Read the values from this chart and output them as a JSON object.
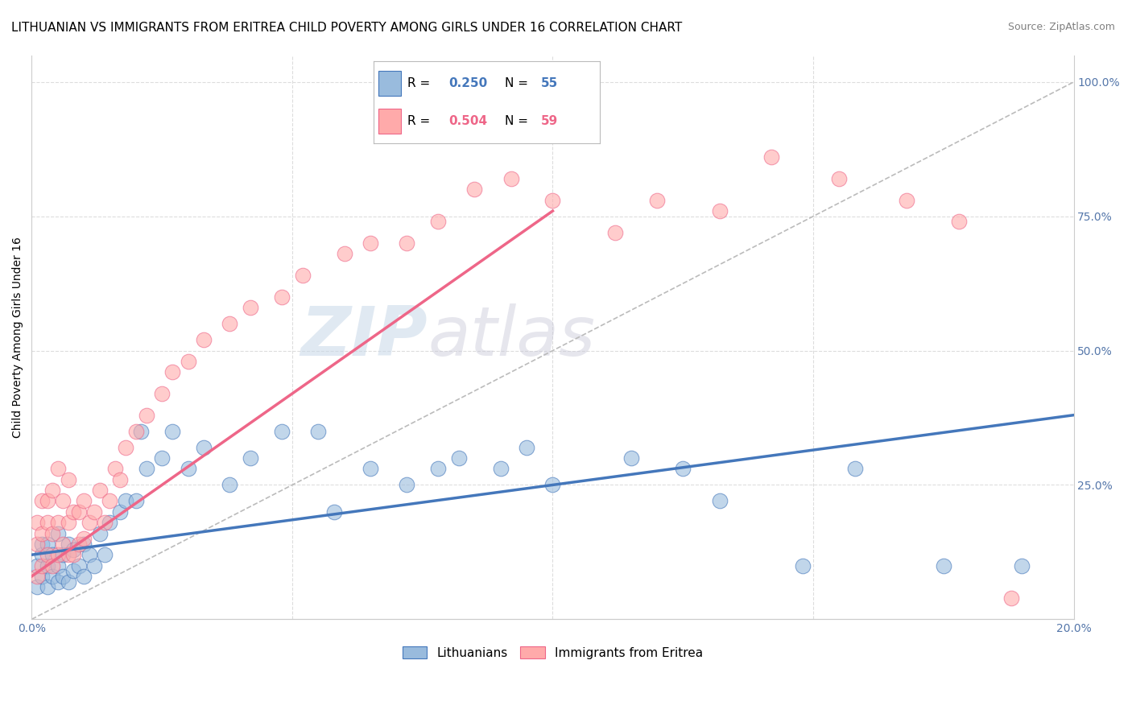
{
  "title": "LITHUANIAN VS IMMIGRANTS FROM ERITREA CHILD POVERTY AMONG GIRLS UNDER 16 CORRELATION CHART",
  "source": "Source: ZipAtlas.com",
  "ylabel": "Child Poverty Among Girls Under 16",
  "xlim": [
    0.0,
    0.2
  ],
  "ylim": [
    0.0,
    1.05
  ],
  "color_blue": "#99BBDD",
  "color_pink": "#FFAAAA",
  "color_blue_line": "#4477BB",
  "color_pink_line": "#EE6688",
  "color_dashed": "#BBBBBB",
  "background_color": "#FFFFFF",
  "title_fontsize": 11,
  "axis_label_fontsize": 10,
  "tick_fontsize": 10,
  "blue_line_x0": 0.0,
  "blue_line_y0": 0.12,
  "blue_line_x1": 0.2,
  "blue_line_y1": 0.38,
  "pink_line_x0": 0.0,
  "pink_line_y0": 0.08,
  "pink_line_x1": 0.1,
  "pink_line_y1": 0.76,
  "blue_scatter_x": [
    0.001,
    0.001,
    0.002,
    0.002,
    0.002,
    0.003,
    0.003,
    0.003,
    0.004,
    0.004,
    0.005,
    0.005,
    0.005,
    0.006,
    0.006,
    0.007,
    0.007,
    0.008,
    0.008,
    0.009,
    0.01,
    0.01,
    0.011,
    0.012,
    0.013,
    0.014,
    0.015,
    0.017,
    0.018,
    0.02,
    0.021,
    0.022,
    0.025,
    0.027,
    0.03,
    0.033,
    0.038,
    0.042,
    0.048,
    0.055,
    0.058,
    0.065,
    0.072,
    0.078,
    0.082,
    0.09,
    0.095,
    0.1,
    0.115,
    0.125,
    0.132,
    0.148,
    0.158,
    0.175,
    0.19
  ],
  "blue_scatter_y": [
    0.06,
    0.1,
    0.08,
    0.12,
    0.14,
    0.06,
    0.1,
    0.14,
    0.08,
    0.12,
    0.07,
    0.1,
    0.16,
    0.08,
    0.12,
    0.07,
    0.14,
    0.09,
    0.13,
    0.1,
    0.08,
    0.14,
    0.12,
    0.1,
    0.16,
    0.12,
    0.18,
    0.2,
    0.22,
    0.22,
    0.35,
    0.28,
    0.3,
    0.35,
    0.28,
    0.32,
    0.25,
    0.3,
    0.35,
    0.35,
    0.2,
    0.28,
    0.25,
    0.28,
    0.3,
    0.28,
    0.32,
    0.25,
    0.3,
    0.28,
    0.22,
    0.1,
    0.28,
    0.1,
    0.1
  ],
  "pink_scatter_x": [
    0.001,
    0.001,
    0.001,
    0.002,
    0.002,
    0.002,
    0.003,
    0.003,
    0.003,
    0.004,
    0.004,
    0.004,
    0.005,
    0.005,
    0.005,
    0.006,
    0.006,
    0.007,
    0.007,
    0.007,
    0.008,
    0.008,
    0.009,
    0.009,
    0.01,
    0.01,
    0.011,
    0.012,
    0.013,
    0.014,
    0.015,
    0.016,
    0.017,
    0.018,
    0.02,
    0.022,
    0.025,
    0.027,
    0.03,
    0.033,
    0.038,
    0.042,
    0.048,
    0.052,
    0.06,
    0.065,
    0.072,
    0.078,
    0.085,
    0.092,
    0.1,
    0.112,
    0.12,
    0.132,
    0.142,
    0.155,
    0.168,
    0.178,
    0.188
  ],
  "pink_scatter_y": [
    0.08,
    0.14,
    0.18,
    0.1,
    0.16,
    0.22,
    0.12,
    0.18,
    0.22,
    0.1,
    0.16,
    0.24,
    0.12,
    0.18,
    0.28,
    0.14,
    0.22,
    0.12,
    0.18,
    0.26,
    0.12,
    0.2,
    0.14,
    0.2,
    0.15,
    0.22,
    0.18,
    0.2,
    0.24,
    0.18,
    0.22,
    0.28,
    0.26,
    0.32,
    0.35,
    0.38,
    0.42,
    0.46,
    0.48,
    0.52,
    0.55,
    0.58,
    0.6,
    0.64,
    0.68,
    0.7,
    0.7,
    0.74,
    0.8,
    0.82,
    0.78,
    0.72,
    0.78,
    0.76,
    0.86,
    0.82,
    0.78,
    0.74,
    0.04
  ]
}
